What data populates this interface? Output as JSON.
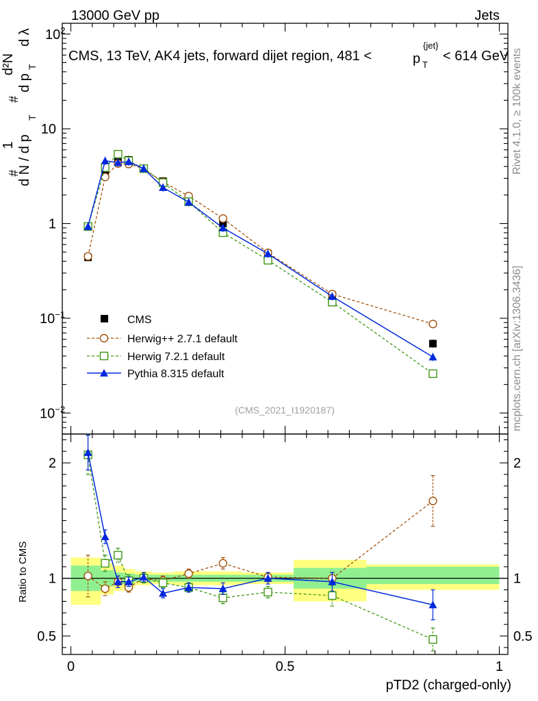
{
  "header": {
    "left": "13000 GeV pp",
    "right": "Jets"
  },
  "side_labels": {
    "rivet": "Rivet 4.1.0, ≥ 100k events",
    "url": "mcplots.cern.ch [arXiv:1306.3436]"
  },
  "chart_data": [
    {
      "type": "line",
      "panel": "main",
      "title": "CMS, 13 TeV, AK4 jets, forward dijet region, 481 <",
      "title_pt": "p",
      "title_sub": "T",
      "title_sup": "{jet}",
      "title_end": "< 614 GeV",
      "watermark": "(CMS_2021_I1920187)",
      "yscale": "log",
      "ylim": [
        0.006,
        130
      ],
      "xlim": [
        -0.02,
        1.02
      ],
      "ylabel": "d²N/(dN/dp_T) dp_T dλ",
      "ylabel_parts": {
        "num1": "1",
        "den1": "d N / d p",
        "den1_sub": "T",
        "num2": "d²N",
        "den2": "d p",
        "den2_sub": "T",
        "den2_end": "d λ",
        "hash": "#"
      },
      "yticks": [
        {
          "v": 0.01,
          "base": "10",
          "exp": "−2"
        },
        {
          "v": 0.1,
          "base": "10",
          "exp": "−1"
        },
        {
          "v": 1,
          "base": "1",
          "exp": ""
        },
        {
          "v": 10,
          "base": "10",
          "exp": ""
        },
        {
          "v": 100,
          "base": "10",
          "exp": "2"
        }
      ],
      "legend_position": "lower-left",
      "series": [
        {
          "name": "CMS",
          "style": "data",
          "color": "#000000",
          "x": [
            0.04,
            0.08,
            0.11,
            0.135,
            0.17,
            0.215,
            0.275,
            0.355,
            0.46,
            0.61,
            0.845
          ],
          "y": [
            0.44,
            3.4,
            4.5,
            4.7,
            3.8,
            2.8,
            1.85,
            1.0,
            0.48,
            0.175,
            0.054
          ]
        },
        {
          "name": "Herwig++ 2.7.1 default",
          "style": "dashed",
          "marker": "open-circle",
          "color": "#a0500a",
          "x": [
            0.04,
            0.08,
            0.11,
            0.135,
            0.17,
            0.215,
            0.275,
            0.355,
            0.46,
            0.61,
            0.845
          ],
          "y": [
            0.45,
            3.1,
            4.3,
            4.25,
            3.8,
            2.75,
            1.95,
            1.13,
            0.49,
            0.18,
            0.087
          ]
        },
        {
          "name": "Herwig 7.2.1 default",
          "style": "dashed",
          "marker": "open-square",
          "color": "#3c9614",
          "x": [
            0.04,
            0.08,
            0.11,
            0.135,
            0.17,
            0.215,
            0.275,
            0.355,
            0.46,
            0.61,
            0.845
          ],
          "y": [
            0.93,
            3.9,
            5.4,
            4.6,
            3.8,
            2.7,
            1.7,
            0.8,
            0.41,
            0.148,
            0.026
          ]
        },
        {
          "name": "Pythia 8.315 default",
          "style": "solid",
          "marker": "filled-triangle",
          "color": "#0028dc",
          "x": [
            0.04,
            0.08,
            0.11,
            0.135,
            0.17,
            0.215,
            0.275,
            0.355,
            0.46,
            0.61,
            0.845
          ],
          "y": [
            0.93,
            4.6,
            4.4,
            4.5,
            3.8,
            2.4,
            1.68,
            0.9,
            0.48,
            0.17,
            0.039
          ]
        }
      ]
    },
    {
      "type": "line",
      "panel": "ratio",
      "ylabel": "Ratio to CMS",
      "xlabel": "pTD2 (charged-only)",
      "xlim": [
        -0.02,
        1.02
      ],
      "ylim": [
        0.34,
        2.25
      ],
      "xticks": [
        {
          "v": 0,
          "label": "0"
        },
        {
          "v": 0.5,
          "label": "0.5"
        },
        {
          "v": 1,
          "label": "1"
        }
      ],
      "yticks": [
        {
          "v": 0.5,
          "label": "0.5"
        },
        {
          "v": 1,
          "label": "1"
        },
        {
          "v": 2,
          "label": "2"
        }
      ],
      "bands": [
        {
          "x0": 0.0,
          "x1": 0.07,
          "y1_lo": 0.89,
          "y1_hi": 1.11,
          "y2_lo": 0.77,
          "y2_hi": 1.18
        },
        {
          "x0": 0.07,
          "x1": 0.1,
          "y1_lo": 0.93,
          "y1_hi": 1.07,
          "y2_lo": 0.86,
          "y2_hi": 1.13
        },
        {
          "x0": 0.1,
          "x1": 0.125,
          "y1_lo": 0.95,
          "y1_hi": 1.05,
          "y2_lo": 0.89,
          "y2_hi": 1.11
        },
        {
          "x0": 0.125,
          "x1": 0.15,
          "y1_lo": 0.96,
          "y1_hi": 1.04,
          "y2_lo": 0.92,
          "y2_hi": 1.08
        },
        {
          "x0": 0.15,
          "x1": 0.19,
          "y1_lo": 0.97,
          "y1_hi": 1.03,
          "y2_lo": 0.94,
          "y2_hi": 1.06
        },
        {
          "x0": 0.19,
          "x1": 0.24,
          "y1_lo": 0.97,
          "y1_hi": 1.03,
          "y2_lo": 0.95,
          "y2_hi": 1.05
        },
        {
          "x0": 0.24,
          "x1": 0.31,
          "y1_lo": 0.97,
          "y1_hi": 1.03,
          "y2_lo": 0.94,
          "y2_hi": 1.06
        },
        {
          "x0": 0.31,
          "x1": 0.4,
          "y1_lo": 0.97,
          "y1_hi": 1.03,
          "y2_lo": 0.94,
          "y2_hi": 1.06
        },
        {
          "x0": 0.4,
          "x1": 0.52,
          "y1_lo": 0.97,
          "y1_hi": 1.03,
          "y2_lo": 0.95,
          "y2_hi": 1.05
        },
        {
          "x0": 0.52,
          "x1": 0.69,
          "y1_lo": 0.91,
          "y1_hi": 1.09,
          "y2_lo": 0.8,
          "y2_hi": 1.16
        },
        {
          "x0": 0.69,
          "x1": 1.0,
          "y1_lo": 0.95,
          "y1_hi": 1.1,
          "y2_lo": 0.9,
          "y2_hi": 1.12
        }
      ],
      "series": [
        {
          "name": "Herwig++ 2.7.1 default",
          "style": "dashed",
          "marker": "open-circle",
          "color": "#a0500a",
          "x": [
            0.04,
            0.08,
            0.11,
            0.135,
            0.17,
            0.215,
            0.275,
            0.355,
            0.46,
            0.61,
            0.845
          ],
          "y": [
            1.02,
            0.91,
            0.97,
            0.92,
            1.0,
            0.98,
            1.04,
            1.13,
            1.01,
            1.0,
            1.67
          ],
          "err": [
            0.18,
            0.06,
            0.05,
            0.04,
            0.04,
            0.04,
            0.04,
            0.05,
            0.04,
            0.05,
            0.22
          ]
        },
        {
          "name": "Herwig 7.2.1 default",
          "style": "dashed",
          "marker": "open-square",
          "color": "#3c9614",
          "x": [
            0.04,
            0.08,
            0.11,
            0.135,
            0.17,
            0.215,
            0.275,
            0.355,
            0.46,
            0.61,
            0.845
          ],
          "y": [
            2.07,
            1.13,
            1.2,
            0.98,
            1.0,
            0.96,
            0.92,
            0.83,
            0.88,
            0.85,
            0.47
          ],
          "err": [
            0.17,
            0.07,
            0.06,
            0.05,
            0.04,
            0.04,
            0.04,
            0.05,
            0.05,
            0.09,
            0.1
          ]
        },
        {
          "name": "Pythia 8.315 default",
          "style": "solid",
          "marker": "filled-triangle",
          "color": "#0028dc",
          "x": [
            0.04,
            0.08,
            0.11,
            0.135,
            0.17,
            0.215,
            0.275,
            0.355,
            0.46,
            0.61,
            0.845
          ],
          "y": [
            2.09,
            1.36,
            0.97,
            0.97,
            1.01,
            0.87,
            0.92,
            0.91,
            1.0,
            0.97,
            0.77
          ],
          "err": [
            0.15,
            0.06,
            0.05,
            0.04,
            0.04,
            0.04,
            0.04,
            0.05,
            0.05,
            0.08,
            0.13
          ]
        }
      ]
    }
  ]
}
